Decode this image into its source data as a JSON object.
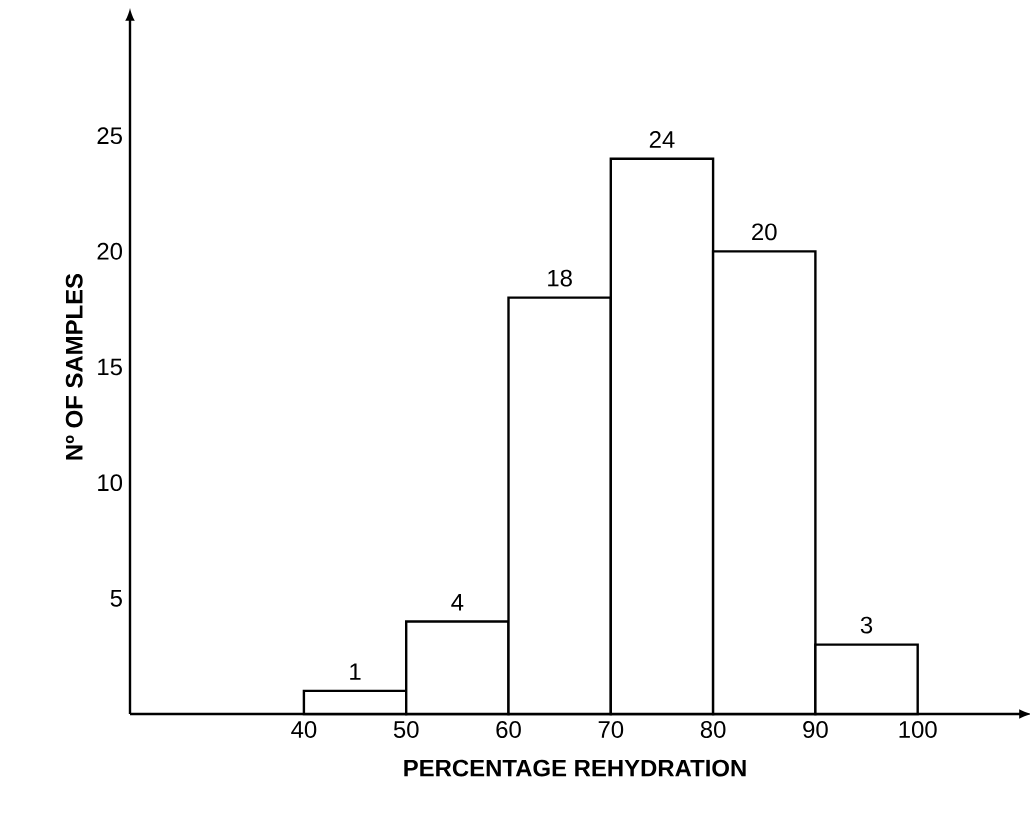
{
  "chart_data": {
    "type": "histogram",
    "xlabel": "PERCENTAGE  REHYDRATION",
    "ylabel": "Nº OF SAMPLES",
    "bins": [
      40,
      50,
      60,
      70,
      80,
      90,
      100
    ],
    "values": [
      1,
      4,
      18,
      24,
      20,
      3
    ],
    "data_labels": true,
    "xlim": [
      23,
      110
    ],
    "ylim": [
      0,
      30
    ],
    "xticks": [
      40,
      50,
      60,
      70,
      80,
      90,
      100
    ],
    "yticks": [
      5,
      10,
      15,
      20,
      25
    ]
  }
}
